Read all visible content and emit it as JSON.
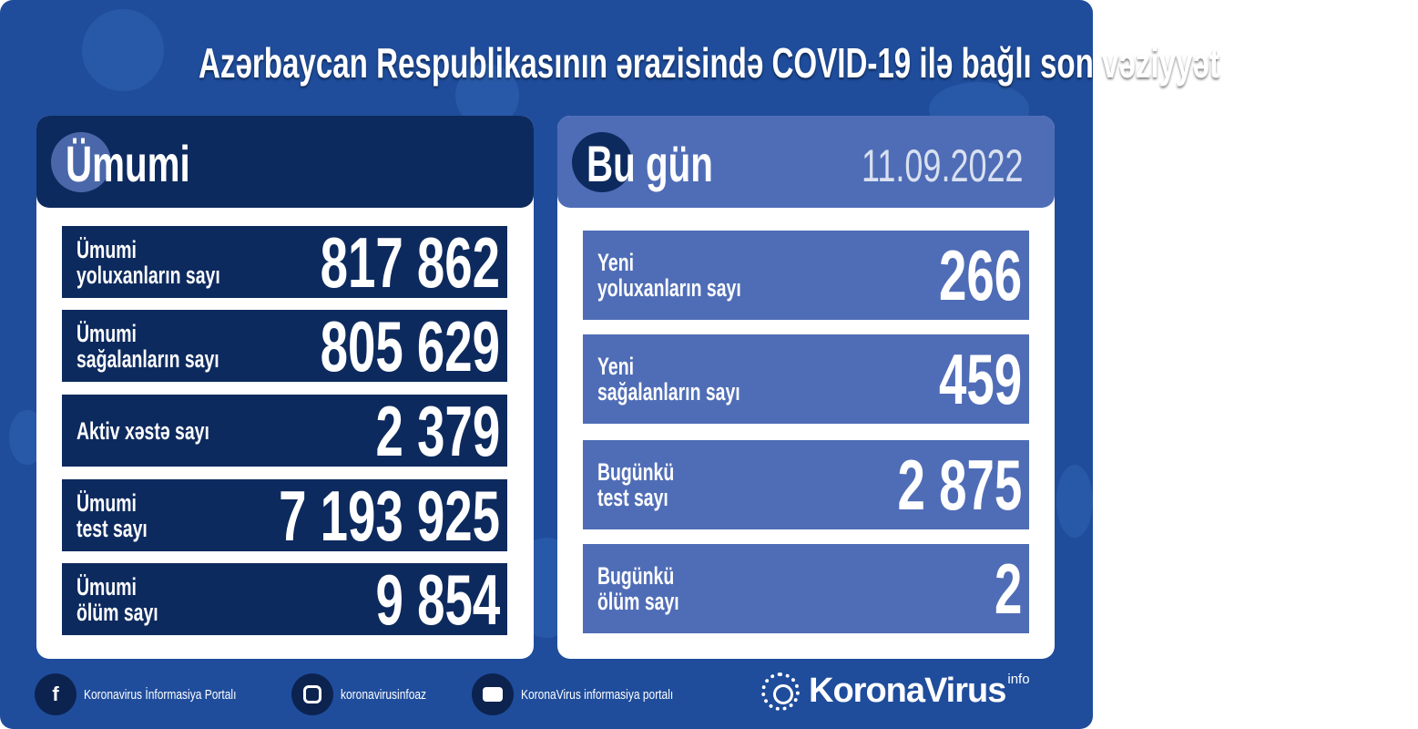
{
  "title": "Azərbaycan Respublikasının ərazisində COVID-19 ilə bağlı son vəziyyət",
  "colors": {
    "background": "#1f4d9c",
    "total_panel": "#0d2a5e",
    "today_panel": "#4f6db6"
  },
  "total": {
    "heading": "Ümumi",
    "rows": [
      {
        "label1": "Ümumi",
        "label2": "yoluxanların sayı",
        "value": "817 862"
      },
      {
        "label1": "Ümumi",
        "label2": "sağalanların sayı",
        "value": "805 629"
      },
      {
        "label1": "Aktiv xəstə sayı",
        "label2": "",
        "value": "2 379"
      },
      {
        "label1": "Ümumi",
        "label2": "test sayı",
        "value": "7 193 925"
      },
      {
        "label1": "Ümumi",
        "label2": "ölüm sayı",
        "value": "9 854"
      }
    ]
  },
  "today": {
    "heading": "Bu gün",
    "date": "11.09.2022",
    "rows": [
      {
        "label1": "Yeni",
        "label2": "yoluxanların sayı",
        "value": "266"
      },
      {
        "label1": "Yeni",
        "label2": "sağalanların sayı",
        "value": "459"
      },
      {
        "label1": "Bugünkü",
        "label2": "test sayı",
        "value": "2 875"
      },
      {
        "label1": "Bugünkü",
        "label2": "ölüm sayı",
        "value": "2"
      }
    ]
  },
  "footer": {
    "facebook": "Koronavirus İnformasiya Portalı",
    "instagram": "koronavirusinfoaz",
    "youtube": "KoronaVirus informasiya portalı",
    "logo_name": "KoronaVirus",
    "logo_sup": "info",
    "icons": [
      "facebook-icon",
      "instagram-icon",
      "youtube-icon",
      "sun-logo-icon"
    ]
  }
}
